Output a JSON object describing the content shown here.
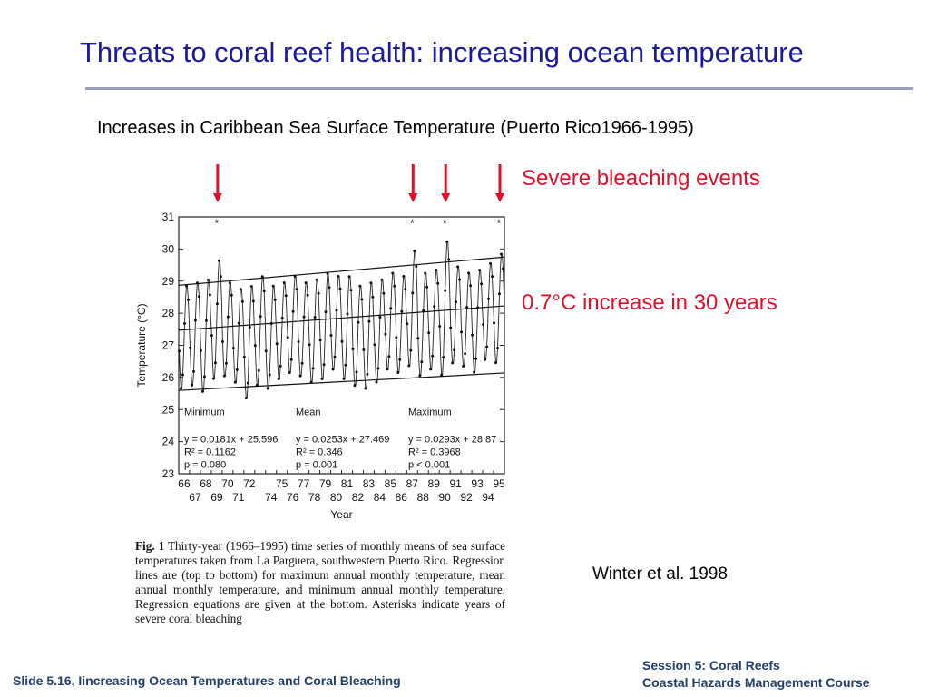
{
  "slide": {
    "title": "Threats to coral reef health: increasing ocean temperature",
    "subtitle": "Increases in Caribbean Sea Surface Temperature  (Puerto Rico1966-1995)",
    "annotation_bleaching": "Severe bleaching events",
    "annotation_increase": "0.7°C increase in 30 years",
    "citation": "Winter et al. 1998",
    "footer_left": "Slide 5.16, Iincreasing Ocean Temperatures and Coral Bleaching",
    "footer_right_line1": "Session 5: Coral Reefs",
    "footer_right_line2": "Coastal Hazards Management Course",
    "colors": {
      "title": "#1a1a9a",
      "annotation": "#e0102a",
      "footer": "#1f3e6a"
    },
    "arrow_years": [
      1969,
      1987,
      1990,
      1995
    ]
  },
  "figure_caption": {
    "label": "Fig. 1",
    "text": "Thirty-year (1966–1995) time series of monthly means of sea surface temperatures taken from La Parguera, southwestern Puerto Rico. Regression lines are (top to bottom) for maximum annual monthly temperature, mean annual monthly temperature, and minimum annual monthly temperature. Regression equations are given at the bottom. Asterisks indicate years of severe coral bleaching"
  },
  "chart_data": {
    "type": "line",
    "xlabel": "Year",
    "ylabel": "Temperature (°C)",
    "ylim": [
      23,
      31
    ],
    "xlim": [
      1966,
      1996
    ],
    "yticks": [
      23,
      24,
      25,
      26,
      27,
      28,
      29,
      30,
      31
    ],
    "xtick_labels_upper": [
      "66",
      "68",
      "70",
      "72",
      "75",
      "77",
      "79",
      "81",
      "83",
      "85",
      "87",
      "89",
      "91",
      "93",
      "95"
    ],
    "xtick_labels_lower": [
      "67",
      "69",
      "71",
      "74",
      "76",
      "78",
      "80",
      "82",
      "84",
      "86",
      "88",
      "90",
      "92",
      "94"
    ],
    "monthly_series": {
      "name": "Monthly mean SST",
      "start_year": 1966,
      "annual_min": [
        25.6,
        25.7,
        25.5,
        25.9,
        26.0,
        25.8,
        25.3,
        25.7,
        25.6,
        25.9,
        26.1,
        26.0,
        25.8,
        25.9,
        26.2,
        25.9,
        25.7,
        25.6,
        25.8,
        26.2,
        26.1,
        26.3,
        26.0,
        26.2,
        26.0,
        26.4,
        26.3,
        26.1,
        26.5,
        26.4
      ],
      "annual_max": [
        28.9,
        29.0,
        29.1,
        29.7,
        29.0,
        28.8,
        28.9,
        29.2,
        28.9,
        29.0,
        29.2,
        29.0,
        29.1,
        29.3,
        29.2,
        29.2,
        28.9,
        29.0,
        29.1,
        29.3,
        29.2,
        30.0,
        29.3,
        29.4,
        30.3,
        29.5,
        29.3,
        29.4,
        29.6,
        29.9
      ]
    },
    "regressions": [
      {
        "name": "Minimum",
        "slope": 0.0181,
        "intercept": 25.596,
        "equation": "y = 0.0181x + 25.596",
        "r2": "R² = 0.1162",
        "p": "p = 0.080"
      },
      {
        "name": "Mean",
        "slope": 0.0253,
        "intercept": 27.469,
        "equation": "y = 0.0253x + 27.469",
        "r2": "R² = 0.346",
        "p": "p = 0.001"
      },
      {
        "name": "Maximum",
        "slope": 0.0293,
        "intercept": 28.87,
        "equation": "y = 0.0293x + 28.87",
        "r2": "R² = 0.3968",
        "p": "p < 0.001"
      }
    ],
    "bleaching_years": [
      1969,
      1987,
      1990,
      1995
    ]
  }
}
